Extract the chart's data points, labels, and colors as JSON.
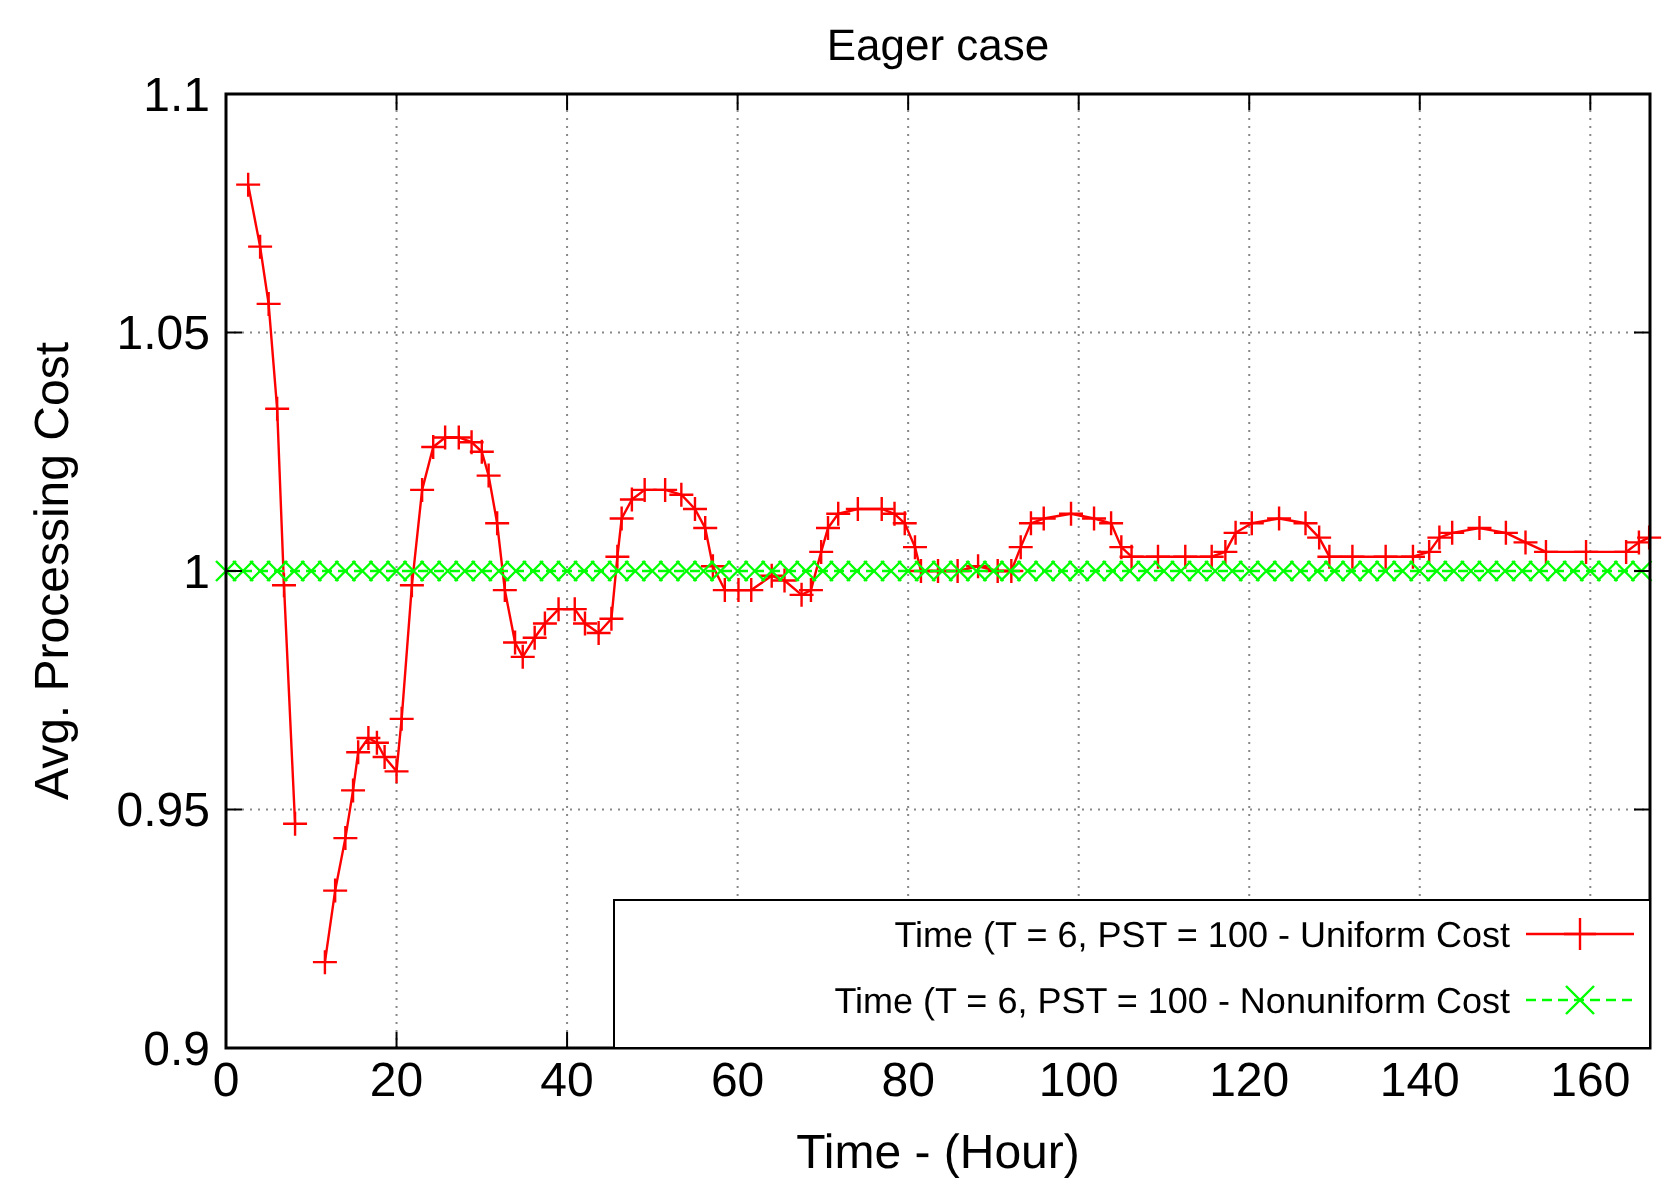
{
  "chart_data": {
    "type": "line",
    "title": "Eager case",
    "xlabel": "Time - (Hour)",
    "ylabel": "Avg. Processing Cost",
    "xlim": [
      0,
      167
    ],
    "xticks": [
      0,
      20,
      40,
      60,
      80,
      100,
      120,
      140,
      160
    ],
    "ylim": [
      0.9,
      1.1
    ],
    "yticks": [
      0.9,
      0.95,
      1,
      1.05,
      1.1
    ],
    "grid": true,
    "legend": "bottom right",
    "series": [
      {
        "name": "Time (T = 6, PST = 100 - Uniform Cost",
        "color": "#ff0000",
        "marker": "cross",
        "line_style": "solid",
        "x": [
          2.6,
          4.0,
          5.0,
          6.0,
          6.8,
          8.1,
          9.5,
          11.6,
          12.8,
          14.0,
          14.9,
          15.5,
          16.7,
          17.7,
          18.6,
          20.0,
          20.6,
          21.8,
          23.0,
          24.3,
          25.7,
          27.3,
          28.8,
          30.0,
          30.8,
          31.8,
          32.7,
          33.9,
          34.8,
          36.2,
          37.4,
          39.0,
          40.9,
          42.1,
          43.7,
          45.2,
          45.9,
          46.4,
          47.6,
          49.1,
          51.5,
          53.4,
          55.0,
          56.2,
          57.1,
          58.5,
          60.1,
          61.6,
          64.0,
          65.5,
          67.5,
          68.6,
          69.8,
          70.6,
          71.8,
          74.1,
          76.9,
          78.4,
          79.6,
          80.8,
          81.5,
          83.5,
          85.8,
          88.2,
          90.5,
          92.1,
          93.2,
          94.4,
          95.9,
          99.1,
          101.8,
          103.8,
          105.0,
          106.2,
          109.3,
          112.5,
          115.6,
          117.2,
          118.4,
          120.3,
          123.5,
          126.6,
          128.2,
          129.4,
          132.1,
          136.0,
          139.2,
          141.1,
          142.3,
          143.8,
          147.0,
          150.1,
          152.4,
          154.8,
          159.5,
          164.2,
          165.7,
          166.9
        ],
        "values": [
          1.081,
          1.068,
          1.056,
          1.034,
          0.997,
          0.947,
          null,
          0.918,
          0.933,
          0.944,
          0.954,
          0.962,
          0.965,
          0.964,
          0.961,
          0.958,
          0.969,
          0.997,
          1.017,
          1.026,
          1.028,
          1.028,
          1.027,
          1.025,
          1.02,
          1.01,
          0.996,
          0.985,
          0.982,
          0.986,
          0.989,
          0.992,
          0.992,
          0.989,
          0.987,
          0.99,
          1.003,
          1.011,
          1.015,
          1.017,
          1.017,
          1.016,
          1.013,
          1.009,
          1.001,
          0.996,
          0.996,
          0.996,
          0.999,
          0.998,
          0.995,
          0.996,
          1.004,
          1.009,
          1.012,
          1.013,
          1.013,
          1.012,
          1.01,
          1.005,
          1.0,
          1.0,
          1.0,
          1.001,
          1.0,
          1.0,
          1.005,
          1.01,
          1.011,
          1.012,
          1.011,
          1.01,
          1.005,
          1.003,
          1.003,
          1.003,
          1.003,
          1.004,
          1.008,
          1.01,
          1.011,
          1.01,
          1.007,
          1.003,
          1.003,
          1.003,
          1.003,
          1.004,
          1.007,
          1.008,
          1.009,
          1.008,
          1.006,
          1.004,
          1.004,
          1.004,
          1.006,
          1.007
        ]
      },
      {
        "name": "Time (T = 6, PST = 100 - Nonuniform Cost",
        "color": "#00ff00",
        "marker": "x",
        "line_style": "dashed",
        "x": [
          0,
          2,
          4,
          6,
          8,
          10,
          12,
          14,
          16,
          18,
          20,
          22,
          24,
          26,
          28,
          30,
          32,
          34,
          36,
          38,
          40,
          42,
          44,
          46,
          48,
          50,
          52,
          54,
          56,
          58,
          60,
          62,
          64,
          66,
          68,
          70,
          72,
          74,
          76,
          78,
          80,
          82,
          84,
          86,
          88,
          90,
          92,
          94,
          96,
          98,
          100,
          102,
          104,
          106,
          108,
          110,
          112,
          114,
          116,
          118,
          120,
          122,
          124,
          126,
          128,
          130,
          132,
          134,
          136,
          138,
          140,
          142,
          144,
          146,
          148,
          150,
          152,
          154,
          156,
          158,
          160,
          162,
          164,
          166
        ],
        "values": [
          1,
          1,
          1,
          1,
          1,
          1,
          1,
          1,
          1,
          1,
          1,
          1,
          1,
          1,
          1,
          1,
          1,
          1,
          1,
          1,
          1,
          1,
          1,
          1,
          1,
          1,
          1,
          1,
          1,
          1,
          1,
          1,
          1,
          1,
          1,
          1,
          1,
          1,
          1,
          1,
          1,
          1,
          1,
          1,
          1,
          1,
          1,
          1,
          1,
          1,
          1,
          1,
          1,
          1,
          1,
          1,
          1,
          1,
          1,
          1,
          1,
          1,
          1,
          1,
          1,
          1,
          1,
          1,
          1,
          1,
          1,
          1,
          1,
          1,
          1,
          1,
          1,
          1,
          1,
          1,
          1,
          1,
          1,
          1
        ]
      }
    ]
  }
}
